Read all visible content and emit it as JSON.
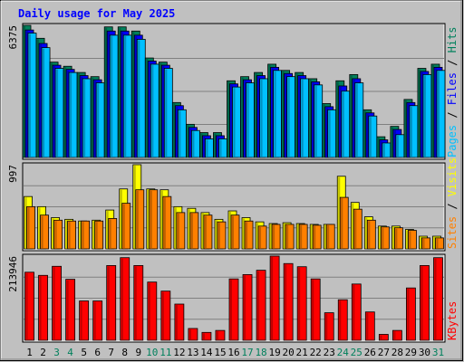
{
  "page": {
    "title": "Daily usage for May 2025"
  },
  "colors": {
    "background": "#c0c0c0",
    "plot_background": "#c0c0c0",
    "hits": "#00805c",
    "files": "#0000ff",
    "pages": "#00c0ff",
    "visits": "#ffff00",
    "sites": "#ff8000",
    "kbytes": "#ff0000",
    "weekend_label": "#00805c",
    "weekday_label": "#000000"
  },
  "chart_data": {
    "type": "bar",
    "title": "Daily usage for May 2025",
    "categories": [
      "1",
      "2",
      "3",
      "4",
      "5",
      "6",
      "7",
      "8",
      "9",
      "10",
      "11",
      "12",
      "13",
      "14",
      "15",
      "16",
      "17",
      "18",
      "19",
      "20",
      "21",
      "22",
      "23",
      "24",
      "25",
      "26",
      "27",
      "28",
      "29",
      "30",
      "31"
    ],
    "weekend_days": [
      "3",
      "4",
      "10",
      "11",
      "17",
      "18",
      "24",
      "25",
      "31"
    ],
    "panels": [
      {
        "name": "hits-files-pages",
        "ylabel_parts": [
          {
            "text": "Pages",
            "color": "#00c0ff"
          },
          {
            "text": " / ",
            "color": "#000000"
          },
          {
            "text": "Files",
            "color": "#0000ff"
          },
          {
            "text": " / ",
            "color": "#000000"
          },
          {
            "text": "Hits",
            "color": "#00805c"
          }
        ],
        "ymax_label": "6375",
        "ylim": [
          0,
          6375
        ],
        "series": [
          {
            "name": "Hits",
            "color": "#00805c",
            "values": [
              6375,
              5750,
              4600,
              4400,
              4100,
              3900,
              6300,
              6300,
              6100,
              4800,
              4600,
              2650,
              1600,
              1200,
              1200,
              3700,
              3900,
              4100,
              4500,
              4200,
              4100,
              3800,
              2600,
              3700,
              4000,
              2300,
              1000,
              1500,
              2800,
              4300,
              4500
            ]
          },
          {
            "name": "Files",
            "color": "#0000ff",
            "values": [
              6150,
              5500,
              4450,
              4250,
              3950,
              3750,
              6100,
              6100,
              5900,
              4650,
              4450,
              2500,
              1450,
              1050,
              1050,
              3550,
              3750,
              3950,
              4350,
              4050,
              3950,
              3650,
              2450,
              3450,
              3800,
              2150,
              850,
              1350,
              2650,
              4150,
              4350
            ]
          },
          {
            "name": "Pages",
            "color": "#00c0ff",
            "values": [
              6000,
              5300,
              4300,
              4100,
              3800,
              3600,
              5900,
              5900,
              5700,
              4500,
              4300,
              2300,
              1300,
              900,
              900,
              3400,
              3600,
              3800,
              4200,
              3900,
              3800,
              3500,
              2300,
              3200,
              3600,
              2000,
              700,
              1100,
              2500,
              4000,
              4200
            ]
          }
        ]
      },
      {
        "name": "visits-sites",
        "ylabel_parts": [
          {
            "text": "Sites",
            "color": "#ff8000"
          },
          {
            "text": " / ",
            "color": "#000000"
          },
          {
            "text": "Visits",
            "color": "#ffff00"
          }
        ],
        "ymax_label": "997",
        "ylim": [
          0,
          997
        ],
        "series": [
          {
            "name": "Visits",
            "color": "#ffff00",
            "values": [
              620,
              500,
              370,
              350,
              330,
              340,
              460,
              710,
              997,
              710,
              700,
              500,
              480,
              430,
              350,
              450,
              370,
              320,
              300,
              310,
              300,
              290,
              290,
              860,
              550,
              380,
              270,
              270,
              230,
              150,
              150
            ]
          },
          {
            "name": "Sites",
            "color": "#ff8000",
            "values": [
              500,
              400,
              340,
              330,
              330,
              330,
              360,
              540,
              700,
              700,
              620,
              430,
              430,
              400,
              320,
              400,
              330,
              270,
              290,
              290,
              290,
              280,
              290,
              610,
              470,
              340,
              260,
              250,
              220,
              130,
              130
            ]
          }
        ]
      },
      {
        "name": "kbytes",
        "ylabel_parts": [
          {
            "text": "KBytes",
            "color": "#ff0000"
          }
        ],
        "ymax_label": "213946",
        "ylim": [
          0,
          213946
        ],
        "series": [
          {
            "name": "KBytes",
            "color": "#ff0000",
            "values": [
              173000,
              165000,
              188000,
              155000,
              100000,
              100000,
              190000,
              210000,
              190000,
              148000,
              125000,
              92000,
              30000,
              20000,
              25000,
              156000,
              167000,
              178000,
              213946,
              195000,
              187000,
              156000,
              70000,
              103000,
              143000,
              72000,
              15000,
              25000,
              133000,
              190000,
              210000
            ]
          }
        ]
      }
    ]
  }
}
